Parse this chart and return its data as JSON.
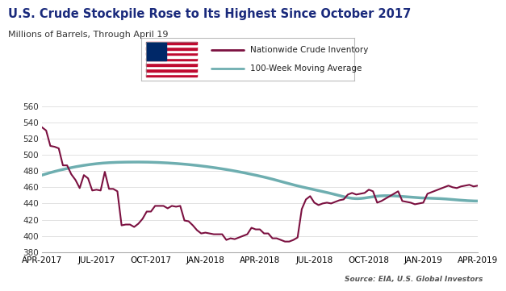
{
  "title": "U.S. Crude Stockpile Rose to Its Highest Since October 2017",
  "subtitle": "Millions of Barrels, Through April 19",
  "source": "Source: EIA, U.S. Global Investors",
  "title_color": "#1a2a7c",
  "subtitle_color": "#333333",
  "source_color": "#555555",
  "ylim": [
    380,
    560
  ],
  "yticks": [
    380,
    400,
    420,
    440,
    460,
    480,
    500,
    520,
    540,
    560
  ],
  "xtick_labels": [
    "APR-2017",
    "JUL-2017",
    "OCT-2017",
    "JAN-2018",
    "APR-2018",
    "JUL-2018",
    "OCT-2018",
    "JAN-2019",
    "APR-2019"
  ],
  "crude_color": "#7b1040",
  "ma_color": "#6eaeb0",
  "crude_label": "Nationwide Crude Inventory",
  "ma_label": "100-Week Moving Average",
  "crude_x": [
    0,
    1,
    2,
    3,
    4,
    5,
    6,
    7,
    8,
    9,
    10,
    11,
    12,
    13,
    14,
    15,
    16,
    17,
    18,
    19,
    20,
    21,
    22,
    23,
    24,
    25,
    26,
    27,
    28,
    29,
    30,
    31,
    32,
    33,
    34,
    35,
    36,
    37,
    38,
    39,
    40,
    41,
    42,
    43,
    44,
    45,
    46,
    47,
    48,
    49,
    50,
    51,
    52,
    53,
    54,
    55,
    56,
    57,
    58,
    59,
    60,
    61,
    62,
    63,
    64,
    65,
    66,
    67,
    68,
    69,
    70,
    71,
    72,
    73,
    74,
    75,
    76,
    77,
    78,
    79,
    80,
    81,
    82,
    83,
    84,
    85,
    86,
    87,
    88,
    89,
    90,
    91,
    92,
    93,
    94,
    95,
    96,
    97,
    98,
    99,
    100,
    101,
    102,
    103,
    104
  ],
  "crude_y": [
    534,
    530,
    511,
    510,
    508,
    487,
    487,
    476,
    469,
    459,
    475,
    471,
    456,
    457,
    456,
    479,
    458,
    458,
    455,
    413,
    414,
    414,
    411,
    415,
    421,
    430,
    430,
    437,
    437,
    437,
    434,
    437,
    436,
    437,
    419,
    418,
    413,
    407,
    403,
    404,
    403,
    402,
    402,
    402,
    395,
    397,
    396,
    398,
    400,
    402,
    410,
    408,
    408,
    403,
    403,
    397,
    397,
    395,
    393,
    393,
    395,
    398,
    433,
    445,
    449,
    441,
    438,
    440,
    441,
    440,
    442,
    444,
    445,
    451,
    453,
    451,
    452,
    453,
    457,
    455,
    441,
    443,
    446,
    449,
    452,
    455,
    443,
    442,
    441,
    439,
    440,
    441,
    452,
    454,
    456,
    458,
    460,
    462,
    460,
    459,
    461,
    462,
    463,
    461,
    462
  ],
  "ma_x": [
    0,
    5,
    10,
    15,
    20,
    25,
    30,
    35,
    40,
    45,
    50,
    55,
    60,
    65,
    70,
    75,
    80,
    85,
    90,
    95,
    100,
    104
  ],
  "ma_y": [
    475,
    482,
    487,
    490,
    491,
    491,
    490,
    488,
    485,
    481,
    476,
    470,
    463,
    457,
    451,
    446,
    449,
    449,
    447,
    446,
    444,
    443
  ],
  "flag_stripes_color": "#BF0A30",
  "flag_canton_color": "#002868"
}
